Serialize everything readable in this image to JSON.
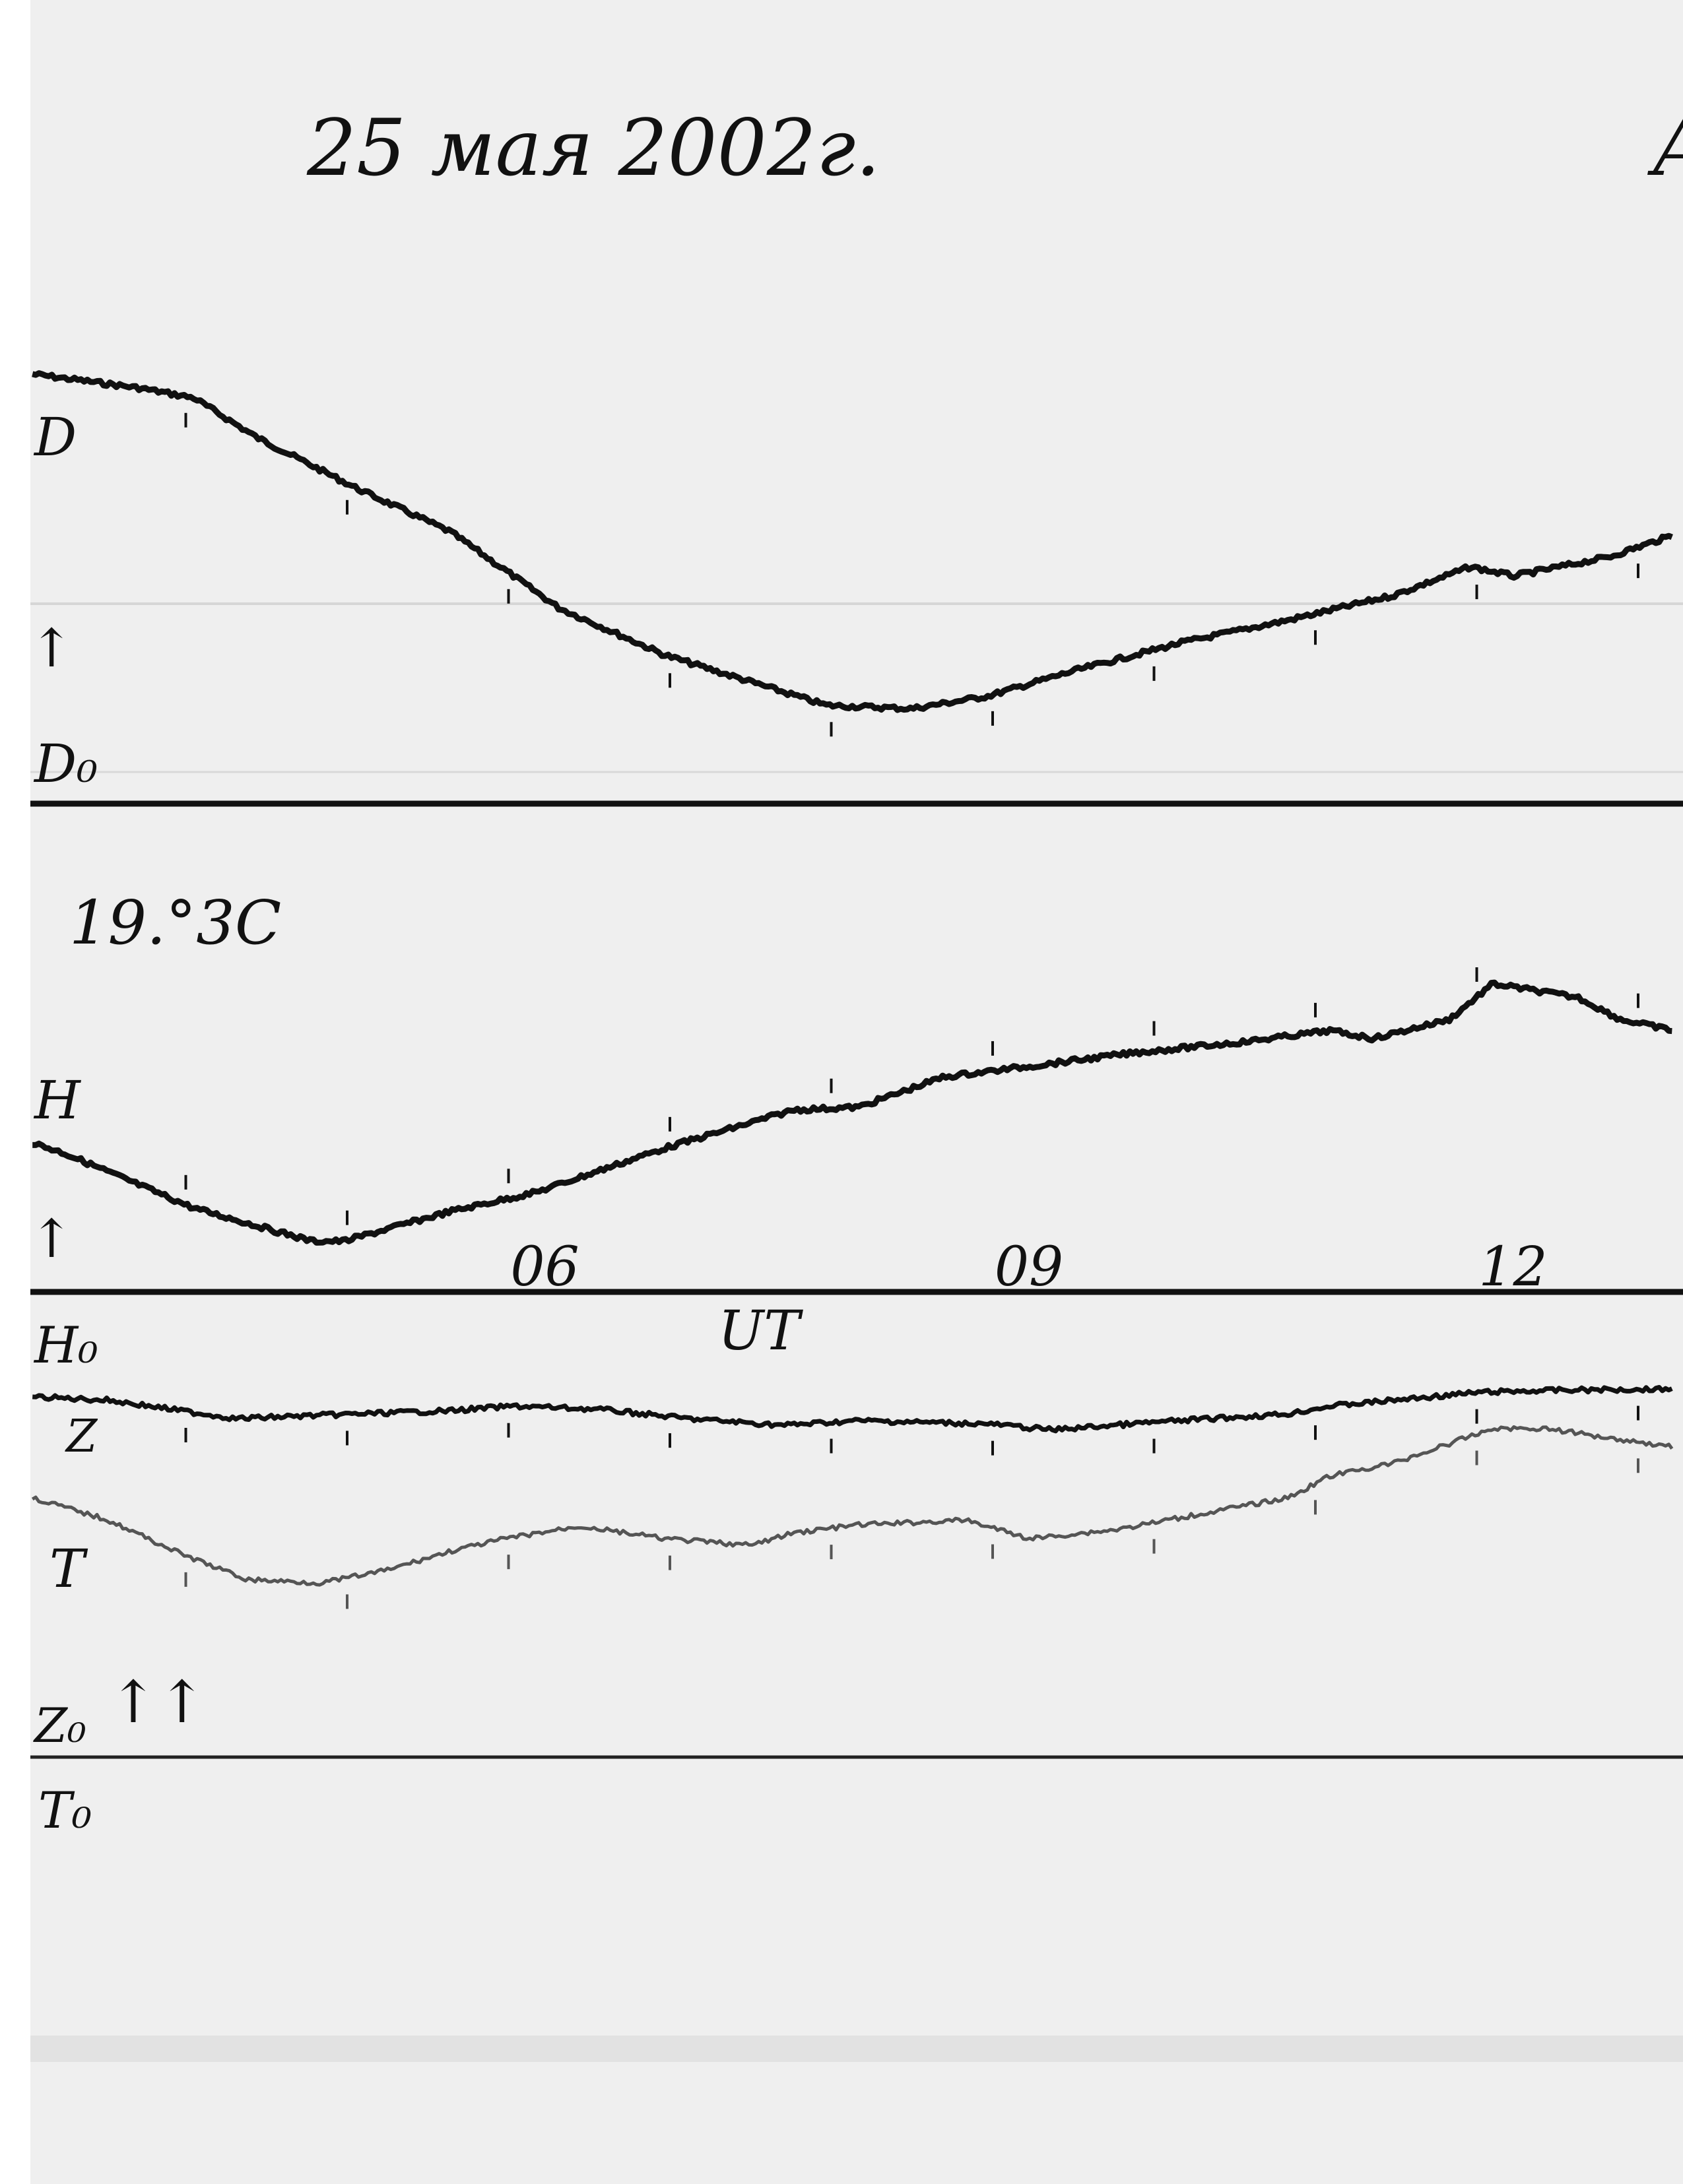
{
  "header": {
    "date_title": "25 мая 2002г.",
    "corner_mark": "A",
    "note": "19.°3C"
  },
  "colors": {
    "paper": "#efefef",
    "trace_dark": "#111111",
    "trace_T": "#555555",
    "baseline": "#1a1a1a"
  },
  "chart_data": {
    "type": "line",
    "title": "25 мая 2002г.",
    "xlabel": "UT",
    "xlim": [
      3.0,
      13.3
    ],
    "x_ticks": [
      {
        "value": 6,
        "label": "06"
      },
      {
        "value": 9,
        "label": "09"
      },
      {
        "value": 12,
        "label": "12"
      }
    ],
    "hour_marks": [
      4,
      5,
      6,
      7,
      8,
      9,
      10,
      11,
      12,
      13
    ],
    "grid": false,
    "units": "relative deflection (arbitrary)",
    "series": [
      {
        "name": "D",
        "baseline_label": "D₀",
        "direction_label": "↑",
        "x": [
          3.05,
          3.71,
          4.05,
          4.44,
          5.05,
          5.64,
          6.31,
          6.97,
          7.97,
          8.5,
          8.97,
          9.5,
          10.17,
          10.83,
          11.49,
          11.96,
          12.23,
          12.82,
          13.22
        ],
        "y": [
          60.3,
          58.2,
          56.7,
          50.7,
          43.1,
          36.4,
          24.9,
          17.7,
          10.1,
          9.6,
          11.5,
          15.3,
          19.6,
          23.0,
          26.8,
          31.1,
          29.7,
          32.6,
          35.9
        ]
      },
      {
        "name": "H",
        "baseline_label": "H₀",
        "direction_label": "↑",
        "x": [
          3.05,
          3.25,
          4.05,
          4.78,
          4.98,
          5.64,
          6.17,
          6.97,
          7.77,
          8.17,
          8.7,
          9.23,
          9.9,
          10.56,
          11.09,
          11.36,
          11.83,
          12.1,
          12.63,
          12.89,
          13.22
        ],
        "y": [
          22.6,
          21.0,
          12.7,
          7.7,
          7.7,
          12.2,
          15.1,
          21.8,
          27.6,
          28.0,
          32.6,
          34.2,
          36.3,
          37.9,
          39.6,
          38.4,
          41.3,
          46.7,
          44.6,
          41.3,
          39.6
        ]
      },
      {
        "name": "Z",
        "baseline_label": "Z₀",
        "direction_label": "↑↑",
        "x": [
          3.05,
          3.52,
          4.31,
          5.05,
          5.64,
          6.04,
          6.57,
          7.11,
          7.7,
          8.17,
          8.97,
          9.37,
          10.03,
          10.83,
          11.09,
          11.49,
          12.03,
          12.49,
          13.22
        ],
        "y": [
          54.5,
          54.0,
          51.2,
          51.9,
          52.4,
          53.1,
          52.6,
          51.2,
          50.2,
          50.9,
          50.4,
          49.5,
          50.7,
          51.9,
          53.1,
          54.0,
          55.2,
          55.5,
          55.7
        ]
      },
      {
        "name": "T",
        "baseline_label": "T₀",
        "x": [
          3.05,
          3.52,
          3.98,
          4.38,
          4.84,
          5.24,
          5.64,
          5.98,
          6.44,
          6.97,
          7.5,
          7.77,
          8.17,
          8.84,
          9.23,
          9.77,
          10.3,
          10.83,
          11.09,
          11.49,
          12.1,
          12.43,
          12.82,
          13.22
        ],
        "y": [
          39.2,
          35.8,
          30.6,
          26.8,
          26.3,
          28.2,
          31.1,
          33.0,
          34.9,
          33.0,
          32.0,
          33.9,
          35.1,
          35.8,
          33.0,
          34.4,
          36.8,
          39.2,
          42.5,
          44.5,
          49.7,
          49.7,
          48.3,
          46.9
        ]
      }
    ]
  }
}
